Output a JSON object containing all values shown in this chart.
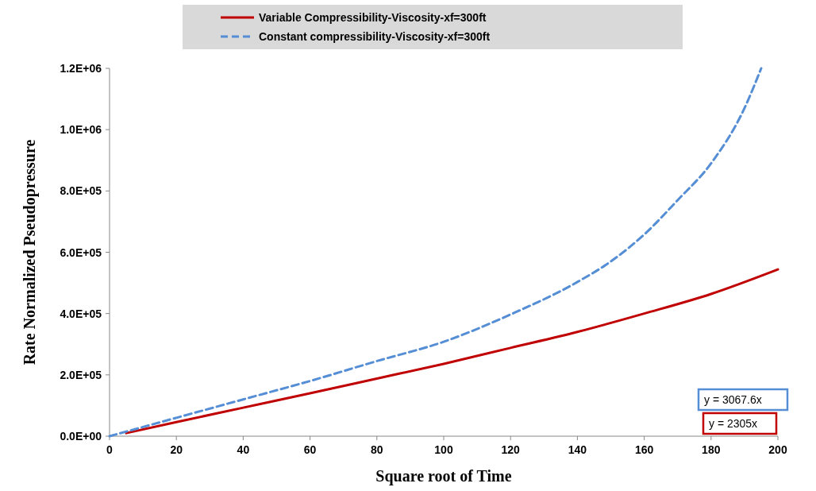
{
  "chart_data": {
    "type": "line",
    "xlabel": "Square root of Time",
    "ylabel": "Rate Normalized Pseudopressure",
    "xlim": [
      0,
      200
    ],
    "xticks": [
      0,
      20,
      40,
      60,
      80,
      100,
      120,
      140,
      160,
      180,
      200
    ],
    "ylim": [
      0,
      1200000
    ],
    "yticks": [
      {
        "value": 0,
        "label": "0.0E+00"
      },
      {
        "value": 200000,
        "label": "2.0E+05"
      },
      {
        "value": 400000,
        "label": "4.0E+05"
      },
      {
        "value": 600000,
        "label": "6.0E+05"
      },
      {
        "value": 800000,
        "label": "8.0E+05"
      },
      {
        "value": 1000000,
        "label": "1.0E+06"
      },
      {
        "value": 1200000,
        "label": "1.2E+06"
      }
    ],
    "grid": false,
    "legend": "top",
    "series": [
      {
        "name": "Variable Compressibility-Viscosity-xf=300ft",
        "color": "#c00000",
        "line_style": "solid",
        "x": [
          5,
          20,
          40,
          60,
          80,
          100,
          120,
          140,
          160,
          180,
          200
        ],
        "values": [
          10000,
          46000,
          93000,
          140000,
          188000,
          236000,
          288000,
          340000,
          400000,
          464000,
          544000
        ]
      },
      {
        "name": "Constant compressibility-Viscosity-xf=300ft",
        "color": "#558ed5",
        "line_style": "dashed",
        "x": [
          0,
          20,
          40,
          60,
          80,
          100,
          120,
          140,
          150,
          160,
          170,
          180,
          190,
          195
        ],
        "values": [
          0,
          60000,
          120000,
          180000,
          245000,
          308000,
          397000,
          503000,
          570000,
          658000,
          770000,
          890000,
          1070000,
          1200000
        ]
      }
    ],
    "annotations": [
      "y = 3067.6x",
      "y = 2305x"
    ]
  }
}
